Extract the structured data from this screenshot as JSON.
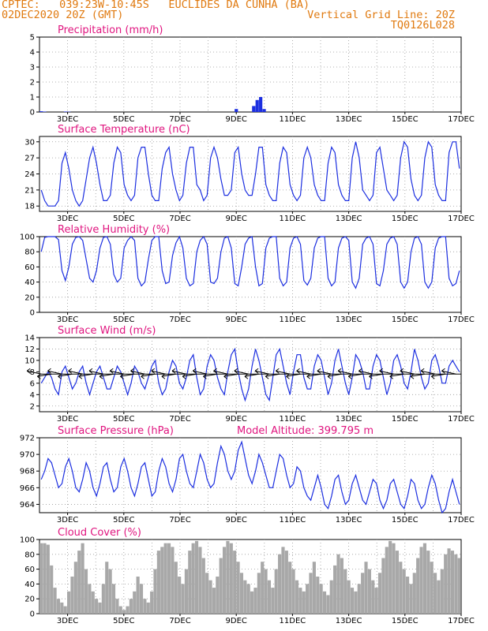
{
  "header": {
    "line1": "CPTEC:   039:23W-10:45S   EUCLIDES DA CUNHA (BA)",
    "line2_left": "02DEC2020 20Z (GMT)",
    "line2_right": "Vertical Grid Line: 20Z",
    "line3_right": "TQ0126L028"
  },
  "colors": {
    "header": "#e07a10",
    "title": "#e0157f",
    "line": "#1c2fe0",
    "bars": "#a8a8a8",
    "grid": "#999999"
  },
  "x_labels": [
    "3DEC",
    "5DEC",
    "7DEC",
    "9DEC",
    "11DEC",
    "13DEC",
    "15DEC",
    "17DEC"
  ],
  "panels": [
    {
      "id": "precip",
      "title": "Precipitation (mm/h)",
      "extra": "",
      "ylim": [
        0,
        5
      ],
      "yticks": [
        0,
        1,
        2,
        3,
        4,
        5
      ]
    },
    {
      "id": "temp",
      "title": "Surface Temperature (nC)",
      "extra": "",
      "ylim": [
        17,
        31
      ],
      "yticks": [
        18,
        21,
        24,
        27,
        30
      ]
    },
    {
      "id": "rh",
      "title": "Relative Humidity (%)",
      "extra": "",
      "ylim": [
        0,
        100
      ],
      "yticks": [
        0,
        20,
        40,
        60,
        80,
        100
      ]
    },
    {
      "id": "wind",
      "title": "Surface Wind (m/s)",
      "extra": "",
      "ylim": [
        1,
        14
      ],
      "yticks": [
        2,
        4,
        6,
        8,
        10,
        12,
        14
      ]
    },
    {
      "id": "pres",
      "title": "Surface Pressure (hPa)",
      "extra": "Model Altitude: 399.795 m",
      "ylim": [
        963,
        972
      ],
      "yticks": [
        964,
        966,
        968,
        970,
        972
      ]
    },
    {
      "id": "cloud",
      "title": "Cloud Cover (%)",
      "extra": "",
      "ylim": [
        0,
        100
      ],
      "yticks": [
        0,
        20,
        40,
        60,
        80,
        100
      ]
    }
  ],
  "chart_data": [
    {
      "type": "bar",
      "title": "Precipitation (mm/h)",
      "x_start": "02DEC2020 20Z",
      "step_hours": 3,
      "ylim": [
        0,
        5
      ],
      "values": [
        0.05,
        0.03,
        0,
        0,
        0,
        0,
        0,
        0.03,
        0.02,
        0,
        0,
        0,
        0,
        0,
        0,
        0,
        0,
        0,
        0,
        0,
        0,
        0,
        0,
        0,
        0,
        0,
        0,
        0,
        0,
        0,
        0,
        0,
        0,
        0,
        0,
        0,
        0,
        0,
        0,
        0,
        0,
        0,
        0,
        0,
        0,
        0,
        0,
        0,
        0,
        0,
        0,
        0,
        0,
        0,
        0,
        0,
        0.2,
        0,
        0,
        0,
        0,
        0.4,
        0.8,
        1.0,
        0.2,
        0,
        0,
        0,
        0,
        0,
        0,
        0,
        0,
        0,
        0,
        0,
        0,
        0,
        0,
        0,
        0,
        0,
        0,
        0,
        0,
        0,
        0,
        0,
        0,
        0,
        0,
        0,
        0,
        0,
        0,
        0,
        0,
        0,
        0,
        0,
        0,
        0,
        0,
        0,
        0,
        0,
        0,
        0,
        0,
        0,
        0,
        0,
        0,
        0,
        0,
        0,
        0,
        0,
        0,
        0,
        0
      ]
    },
    {
      "type": "line",
      "title": "Surface Temperature (nC)",
      "x_start": "02DEC2020 20Z",
      "step_hours": 3,
      "ylim": [
        17,
        31
      ],
      "values": [
        21,
        19,
        18,
        18,
        18,
        19,
        26,
        28,
        25,
        21,
        19,
        18,
        19,
        23,
        27,
        29,
        26,
        22,
        19,
        19,
        20,
        26,
        29,
        28,
        22,
        20,
        19,
        20,
        27,
        29,
        29,
        24,
        20,
        19,
        19,
        25,
        28,
        29,
        24,
        21,
        19,
        20,
        26,
        29,
        29,
        22,
        21,
        19,
        20,
        27,
        29,
        27,
        23,
        20,
        20,
        21,
        28,
        29,
        24,
        21,
        20,
        20,
        24,
        29,
        29,
        22,
        20,
        19,
        19,
        26,
        29,
        28,
        22,
        20,
        19,
        20,
        27,
        29,
        27,
        22,
        20,
        19,
        19,
        26,
        29,
        28,
        22,
        20,
        19,
        19,
        27,
        30,
        27,
        21,
        20,
        19,
        20,
        28,
        29,
        25,
        21,
        20,
        19,
        20,
        27,
        30,
        29,
        23,
        20,
        19,
        20,
        27,
        30,
        29,
        22,
        20,
        19,
        19,
        28,
        30,
        30,
        25
      ]
    },
    {
      "type": "line",
      "title": "Relative Humidity (%)",
      "x_start": "02DEC2020 20Z",
      "step_hours": 3,
      "ylim": [
        0,
        100
      ],
      "values": [
        80,
        99,
        100,
        100,
        100,
        96,
        55,
        42,
        60,
        90,
        99,
        100,
        95,
        70,
        45,
        40,
        55,
        85,
        99,
        100,
        90,
        50,
        40,
        45,
        85,
        95,
        100,
        95,
        45,
        35,
        40,
        70,
        95,
        100,
        100,
        55,
        38,
        40,
        75,
        92,
        100,
        85,
        45,
        35,
        38,
        80,
        95,
        100,
        90,
        40,
        38,
        45,
        80,
        98,
        100,
        85,
        38,
        35,
        60,
        90,
        98,
        100,
        60,
        35,
        38,
        85,
        98,
        100,
        100,
        45,
        35,
        40,
        85,
        98,
        100,
        90,
        42,
        36,
        45,
        85,
        98,
        100,
        100,
        45,
        35,
        40,
        85,
        98,
        100,
        95,
        40,
        32,
        45,
        90,
        98,
        100,
        90,
        38,
        35,
        55,
        90,
        98,
        100,
        90,
        40,
        32,
        40,
        80,
        98,
        100,
        90,
        40,
        32,
        40,
        85,
        98,
        100,
        100,
        45,
        35,
        38,
        55
      ]
    },
    {
      "type": "line",
      "title": "Surface Wind (m/s)",
      "x_start": "02DEC2020 20Z",
      "step_hours": 3,
      "ylim": [
        1,
        14
      ],
      "values": [
        6,
        7,
        8,
        7,
        5,
        4,
        8,
        9,
        7,
        5,
        6,
        8,
        9,
        6,
        4,
        6,
        8,
        9,
        7,
        5,
        5,
        7,
        9,
        8,
        6,
        4,
        6,
        9,
        8,
        6,
        5,
        7,
        9,
        10,
        6,
        4,
        5,
        8,
        10,
        9,
        6,
        5,
        7,
        10,
        11,
        7,
        4,
        5,
        9,
        11,
        10,
        7,
        5,
        4,
        8,
        11,
        12,
        8,
        5,
        3,
        5,
        9,
        12,
        10,
        7,
        4,
        3,
        7,
        11,
        12,
        9,
        6,
        4,
        8,
        11,
        11,
        7,
        5,
        5,
        9,
        11,
        10,
        7,
        4,
        6,
        10,
        12,
        9,
        6,
        4,
        7,
        11,
        10,
        8,
        5,
        5,
        9,
        11,
        10,
        7,
        4,
        6,
        10,
        11,
        9,
        6,
        5,
        8,
        12,
        10,
        7,
        5,
        6,
        10,
        11,
        9,
        6,
        6,
        9,
        10,
        9,
        8
      ]
    },
    {
      "type": "line",
      "title": "Surface Pressure (hPa)",
      "x_start": "02DEC2020 20Z",
      "step_hours": 3,
      "ylim": [
        963,
        972
      ],
      "values": [
        967,
        968,
        969.5,
        969,
        967.5,
        966,
        966.5,
        968.5,
        969.5,
        968,
        966,
        965.5,
        967,
        969,
        968,
        966,
        965,
        966.5,
        968.5,
        969,
        967,
        965.5,
        966,
        968.5,
        969.5,
        968,
        966,
        965,
        966.5,
        968.5,
        969,
        967,
        965,
        965.5,
        968,
        969.5,
        968.5,
        966.5,
        965.5,
        967,
        969.5,
        970,
        968,
        966.5,
        966,
        968,
        970,
        969,
        967,
        966,
        966.5,
        969,
        971,
        970,
        968,
        967,
        968,
        970.5,
        971.5,
        969.5,
        967.5,
        966.5,
        968,
        970,
        969,
        967.5,
        966,
        966,
        968,
        970,
        969.5,
        967.5,
        966,
        966.5,
        968.5,
        968,
        966,
        965,
        964.5,
        966,
        967.5,
        966,
        964,
        963.5,
        965,
        967,
        967.5,
        965.5,
        964,
        964.5,
        966.5,
        967.5,
        966,
        964.5,
        964,
        965.5,
        967,
        966.5,
        964.5,
        963.5,
        964.5,
        966.5,
        967,
        965.5,
        964,
        963.5,
        965,
        967,
        966.5,
        964.5,
        963.5,
        964,
        966,
        967.5,
        966.5,
        964.5,
        963,
        963.5,
        965.5,
        967,
        965.5,
        964
      ]
    },
    {
      "type": "bar",
      "title": "Cloud Cover (%)",
      "x_start": "02DEC2020 20Z",
      "step_hours": 3,
      "ylim": [
        0,
        100
      ],
      "values": [
        95,
        95,
        93,
        65,
        35,
        20,
        15,
        10,
        30,
        50,
        70,
        85,
        95,
        60,
        40,
        30,
        20,
        15,
        40,
        70,
        60,
        40,
        20,
        10,
        5,
        10,
        20,
        30,
        50,
        40,
        20,
        15,
        30,
        60,
        85,
        90,
        95,
        95,
        90,
        70,
        50,
        40,
        60,
        85,
        95,
        98,
        90,
        75,
        55,
        45,
        35,
        50,
        75,
        90,
        98,
        95,
        85,
        70,
        55,
        45,
        40,
        30,
        35,
        55,
        70,
        60,
        45,
        35,
        60,
        80,
        90,
        85,
        70,
        60,
        45,
        35,
        30,
        40,
        55,
        70,
        50,
        40,
        30,
        25,
        45,
        65,
        80,
        75,
        60,
        45,
        35,
        30,
        40,
        55,
        70,
        60,
        45,
        35,
        55,
        75,
        90,
        98,
        95,
        85,
        70,
        60,
        50,
        40,
        55,
        75,
        90,
        95,
        85,
        70,
        55,
        45,
        60,
        80,
        88,
        85,
        80,
        75
      ]
    }
  ],
  "wind_vectors": [
    {
      "x": "03DEC",
      "dir_deg": 110,
      "speed": 8
    }
  ]
}
